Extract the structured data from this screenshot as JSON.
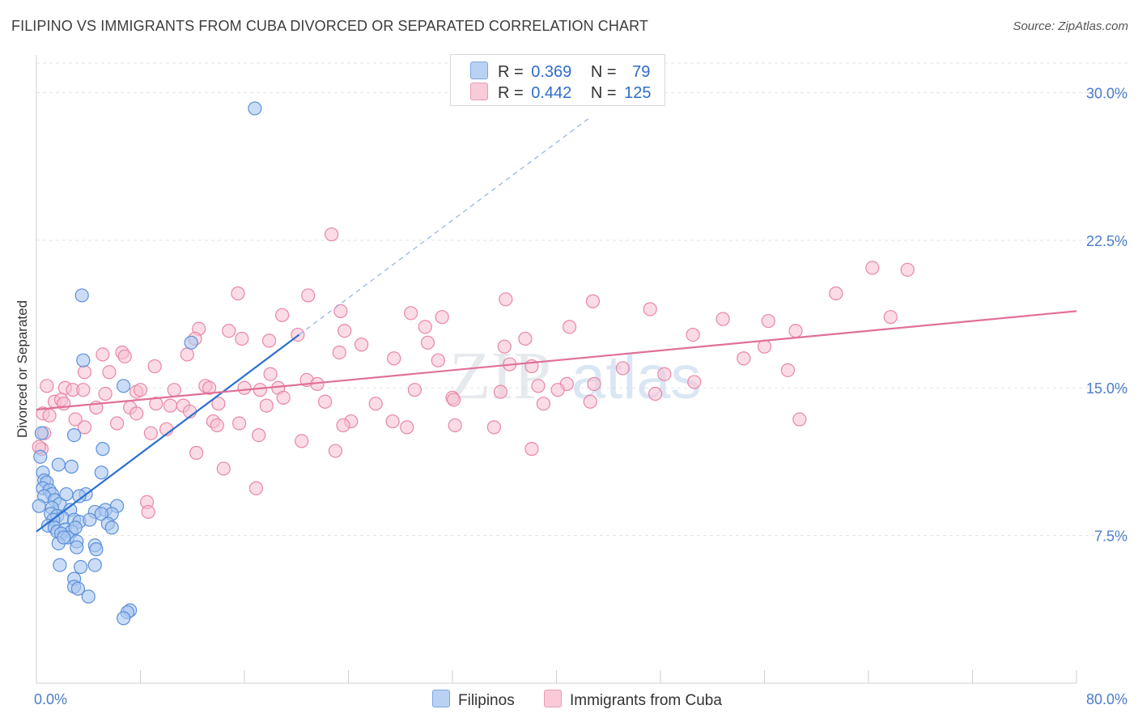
{
  "title": "FILIPINO VS IMMIGRANTS FROM CUBA DIVORCED OR SEPARATED CORRELATION CHART",
  "source": "Source: ZipAtlas.com",
  "watermark_zip": "ZIP",
  "watermark_atlas": "atlas",
  "legend": {
    "rows": [
      {
        "r_label": "R =",
        "r_value": "0.369",
        "n_label": "N =",
        "n_value": "79"
      },
      {
        "r_label": "R =",
        "r_value": "0.442",
        "n_label": "N =",
        "n_value": "125"
      }
    ]
  },
  "bottom_legend": {
    "series1": "Filipinos",
    "series2": "Immigrants from Cuba"
  },
  "colors": {
    "blue_fill": "#a9c7f0",
    "blue_stroke": "#5b8fd9",
    "blue_line": "#2a6fd0",
    "pink_fill": "#f7c0d2",
    "pink_stroke": "#e886a6",
    "pink_line": "#e0709a",
    "grid": "#e3e3e3",
    "tick_text": "#4a7cc9"
  },
  "chart_data": {
    "type": "scatter",
    "title": "FILIPINO VS IMMIGRANTS FROM CUBA DIVORCED OR SEPARATED CORRELATION CHART",
    "xlabel": "",
    "ylabel": "Divorced or Separated",
    "xlim": [
      0,
      80
    ],
    "ylim": [
      0,
      31.5
    ],
    "x_tick_labels": [
      "0.0%",
      "80.0%"
    ],
    "y_ticks": [
      7.5,
      15.0,
      22.5,
      30.0
    ],
    "y_tick_labels": [
      "7.5%",
      "15.0%",
      "22.5%",
      "30.0%"
    ],
    "grid": true,
    "series": [
      {
        "name": "Filipinos",
        "R": 0.369,
        "N": 79,
        "trend": {
          "x": [
            0,
            20.2
          ],
          "y": [
            7.7,
            17.7
          ],
          "dashed_extension_to": [
            42.5,
            28.7
          ]
        },
        "points": [
          [
            16.8,
            29.2
          ],
          [
            3.5,
            19.7
          ],
          [
            11.9,
            17.3
          ],
          [
            3.6,
            16.4
          ],
          [
            6.7,
            15.1
          ],
          [
            0.4,
            12.7
          ],
          [
            2.9,
            12.6
          ],
          [
            5.1,
            11.9
          ],
          [
            0.3,
            11.5
          ],
          [
            2.7,
            11.0
          ],
          [
            1.7,
            11.1
          ],
          [
            5.0,
            10.7
          ],
          [
            0.5,
            10.7
          ],
          [
            0.6,
            10.3
          ],
          [
            0.8,
            10.2
          ],
          [
            0.5,
            9.9
          ],
          [
            1.0,
            9.8
          ],
          [
            1.2,
            9.6
          ],
          [
            0.6,
            9.5
          ],
          [
            1.4,
            9.3
          ],
          [
            1.8,
            9.1
          ],
          [
            2.3,
            9.6
          ],
          [
            3.8,
            9.6
          ],
          [
            3.3,
            9.5
          ],
          [
            6.2,
            9.0
          ],
          [
            1.2,
            8.9
          ],
          [
            2.6,
            8.8
          ],
          [
            4.5,
            8.7
          ],
          [
            5.3,
            8.8
          ],
          [
            5.8,
            8.6
          ],
          [
            5.0,
            8.6
          ],
          [
            1.1,
            8.6
          ],
          [
            1.6,
            8.5
          ],
          [
            2.0,
            8.4
          ],
          [
            2.9,
            8.3
          ],
          [
            3.3,
            8.2
          ],
          [
            4.1,
            8.3
          ],
          [
            1.3,
            8.3
          ],
          [
            0.9,
            8.0
          ],
          [
            1.4,
            7.9
          ],
          [
            1.6,
            7.7
          ],
          [
            2.2,
            7.8
          ],
          [
            2.7,
            7.7
          ],
          [
            3.0,
            7.9
          ],
          [
            5.5,
            8.1
          ],
          [
            5.8,
            7.9
          ],
          [
            1.9,
            7.6
          ],
          [
            2.4,
            7.4
          ],
          [
            3.1,
            7.2
          ],
          [
            1.7,
            7.1
          ],
          [
            2.1,
            7.4
          ],
          [
            3.1,
            6.9
          ],
          [
            4.5,
            7.0
          ],
          [
            4.6,
            6.8
          ],
          [
            1.8,
            6.0
          ],
          [
            3.4,
            5.9
          ],
          [
            4.5,
            6.0
          ],
          [
            2.9,
            5.3
          ],
          [
            2.9,
            4.9
          ],
          [
            3.2,
            4.8
          ],
          [
            4.0,
            4.4
          ],
          [
            7.2,
            3.7
          ],
          [
            7.0,
            3.6
          ],
          [
            6.7,
            3.3
          ],
          [
            0.2,
            9.0
          ]
        ]
      },
      {
        "name": "Immigrants from Cuba",
        "R": 0.442,
        "N": 125,
        "trend": {
          "x": [
            0,
            80
          ],
          "y": [
            13.9,
            18.9
          ]
        },
        "points": [
          [
            22.7,
            22.8
          ],
          [
            64.3,
            21.1
          ],
          [
            67.0,
            21.0
          ],
          [
            61.5,
            19.8
          ],
          [
            15.5,
            19.8
          ],
          [
            20.9,
            19.7
          ],
          [
            36.1,
            19.5
          ],
          [
            42.8,
            19.4
          ],
          [
            47.2,
            19.0
          ],
          [
            23.4,
            18.9
          ],
          [
            28.8,
            18.8
          ],
          [
            18.9,
            18.7
          ],
          [
            31.2,
            18.6
          ],
          [
            56.3,
            18.4
          ],
          [
            52.8,
            18.5
          ],
          [
            65.7,
            18.6
          ],
          [
            29.9,
            18.1
          ],
          [
            41.0,
            18.1
          ],
          [
            12.5,
            18.0
          ],
          [
            14.8,
            17.9
          ],
          [
            23.7,
            17.9
          ],
          [
            58.4,
            17.9
          ],
          [
            50.5,
            17.7
          ],
          [
            20.1,
            17.7
          ],
          [
            15.8,
            17.5
          ],
          [
            17.9,
            17.4
          ],
          [
            12.2,
            17.5
          ],
          [
            37.6,
            17.5
          ],
          [
            30.1,
            17.3
          ],
          [
            25.0,
            17.2
          ],
          [
            36.0,
            17.1
          ],
          [
            56.0,
            17.1
          ],
          [
            23.3,
            16.8
          ],
          [
            11.6,
            16.7
          ],
          [
            6.6,
            16.8
          ],
          [
            5.1,
            16.7
          ],
          [
            6.8,
            16.6
          ],
          [
            54.4,
            16.5
          ],
          [
            27.5,
            16.5
          ],
          [
            30.9,
            16.4
          ],
          [
            36.4,
            16.2
          ],
          [
            9.1,
            16.1
          ],
          [
            45.1,
            16.0
          ],
          [
            38.1,
            16.1
          ],
          [
            57.8,
            15.9
          ],
          [
            3.7,
            15.8
          ],
          [
            5.6,
            15.8
          ],
          [
            18.0,
            15.7
          ],
          [
            48.3,
            15.7
          ],
          [
            20.8,
            15.4
          ],
          [
            50.6,
            15.3
          ],
          [
            42.9,
            15.2
          ],
          [
            21.6,
            15.2
          ],
          [
            38.6,
            15.1
          ],
          [
            40.8,
            15.2
          ],
          [
            13.0,
            15.1
          ],
          [
            13.3,
            15.0
          ],
          [
            16.0,
            15.0
          ],
          [
            18.6,
            15.0
          ],
          [
            0.8,
            15.1
          ],
          [
            2.2,
            15.0
          ],
          [
            2.8,
            14.9
          ],
          [
            3.6,
            14.9
          ],
          [
            7.7,
            14.8
          ],
          [
            8.0,
            14.9
          ],
          [
            10.6,
            14.9
          ],
          [
            17.2,
            14.9
          ],
          [
            29.1,
            14.9
          ],
          [
            35.7,
            14.8
          ],
          [
            40.1,
            14.9
          ],
          [
            47.6,
            14.7
          ],
          [
            5.3,
            14.7
          ],
          [
            32.0,
            14.5
          ],
          [
            32.1,
            14.4
          ],
          [
            19.0,
            14.5
          ],
          [
            22.2,
            14.3
          ],
          [
            1.4,
            14.3
          ],
          [
            1.9,
            14.4
          ],
          [
            42.6,
            14.3
          ],
          [
            14.0,
            14.2
          ],
          [
            2.1,
            14.2
          ],
          [
            9.2,
            14.2
          ],
          [
            10.3,
            14.1
          ],
          [
            17.7,
            14.1
          ],
          [
            26.1,
            14.2
          ],
          [
            11.3,
            14.1
          ],
          [
            39.0,
            14.2
          ],
          [
            4.6,
            14.0
          ],
          [
            7.2,
            14.0
          ],
          [
            11.8,
            13.8
          ],
          [
            0.5,
            13.7
          ],
          [
            1.0,
            13.6
          ],
          [
            7.7,
            13.7
          ],
          [
            3.0,
            13.4
          ],
          [
            13.6,
            13.3
          ],
          [
            24.2,
            13.3
          ],
          [
            27.4,
            13.3
          ],
          [
            6.2,
            13.2
          ],
          [
            15.6,
            13.2
          ],
          [
            13.9,
            13.1
          ],
          [
            58.7,
            13.4
          ],
          [
            23.6,
            13.1
          ],
          [
            28.5,
            13.0
          ],
          [
            32.2,
            13.1
          ],
          [
            3.7,
            13.0
          ],
          [
            10.0,
            12.9
          ],
          [
            8.8,
            12.7
          ],
          [
            17.1,
            12.6
          ],
          [
            0.6,
            12.7
          ],
          [
            35.2,
            13.0
          ],
          [
            20.4,
            12.3
          ],
          [
            38.1,
            11.9
          ],
          [
            12.3,
            11.7
          ],
          [
            23.0,
            11.8
          ],
          [
            0.4,
            11.9
          ],
          [
            14.4,
            10.9
          ],
          [
            16.9,
            9.9
          ],
          [
            8.5,
            9.2
          ],
          [
            8.6,
            8.7
          ],
          [
            0.2,
            12.0
          ]
        ]
      }
    ]
  }
}
